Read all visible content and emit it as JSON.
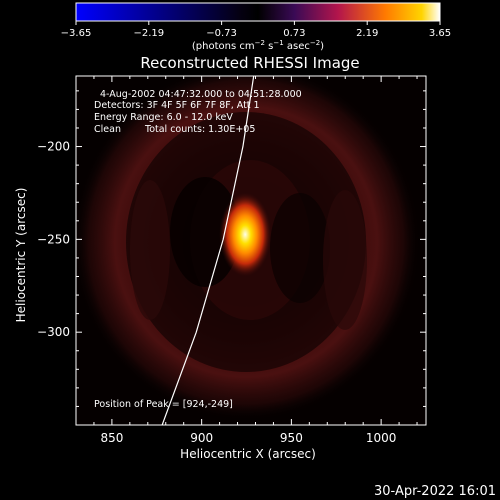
{
  "colorbar": {
    "ticks": [
      "−3.65",
      "−2.19",
      "−0.73",
      "0.73",
      "2.19",
      "3.65"
    ],
    "label_base": "(photons cm",
    "label_exp1": "−2",
    "label_mid1": " s",
    "label_exp2": "−1",
    "label_mid2": " asec",
    "label_exp3": "−2",
    "label_end": ")"
  },
  "chart_data": {
    "type": "heatmap",
    "title": "Reconstructed RHESSI Image",
    "xlabel": "Heliocentric X (arcsec)",
    "ylabel": "Heliocentric Y (arcsec)",
    "xlim": [
      830,
      1025
    ],
    "ylim": [
      -350,
      -162
    ],
    "x_ticks": [
      {
        "value": 850,
        "label": "850"
      },
      {
        "value": 900,
        "label": "900"
      },
      {
        "value": 950,
        "label": "950"
      },
      {
        "value": 1000,
        "label": "1000"
      }
    ],
    "y_ticks": [
      {
        "value": -200,
        "label": "−200"
      },
      {
        "value": -250,
        "label": "−250"
      },
      {
        "value": -300,
        "label": "−300"
      }
    ],
    "colormap": [
      "#000000",
      "#2a0044",
      "#7a0a6a",
      "#c41a3a",
      "#ff6a00",
      "#ffc400",
      "#ffffff"
    ],
    "color_range": [
      -3.65,
      3.65
    ],
    "peak": {
      "x": 924,
      "y": -249
    },
    "limb_curve": [
      [
        878,
        -350
      ],
      [
        897,
        -300
      ],
      [
        912,
        -250
      ],
      [
        923,
        -200
      ],
      [
        929,
        -162
      ]
    ],
    "annotations": {
      "time": "4-Aug-2002 04:47:32.000 to 04:51:28.000",
      "detectors": "Detectors: 3F 4F 5F 6F 7F 8F, Att 1",
      "energy": "Energy Range: 6.0 - 12.0 keV",
      "clean_word": "Clean",
      "total_counts": "Total counts: 1.30E+05",
      "peak_text": "Position of Peak = [924,-249]"
    }
  },
  "footer": {
    "timestamp": "30-Apr-2022 16:01"
  }
}
